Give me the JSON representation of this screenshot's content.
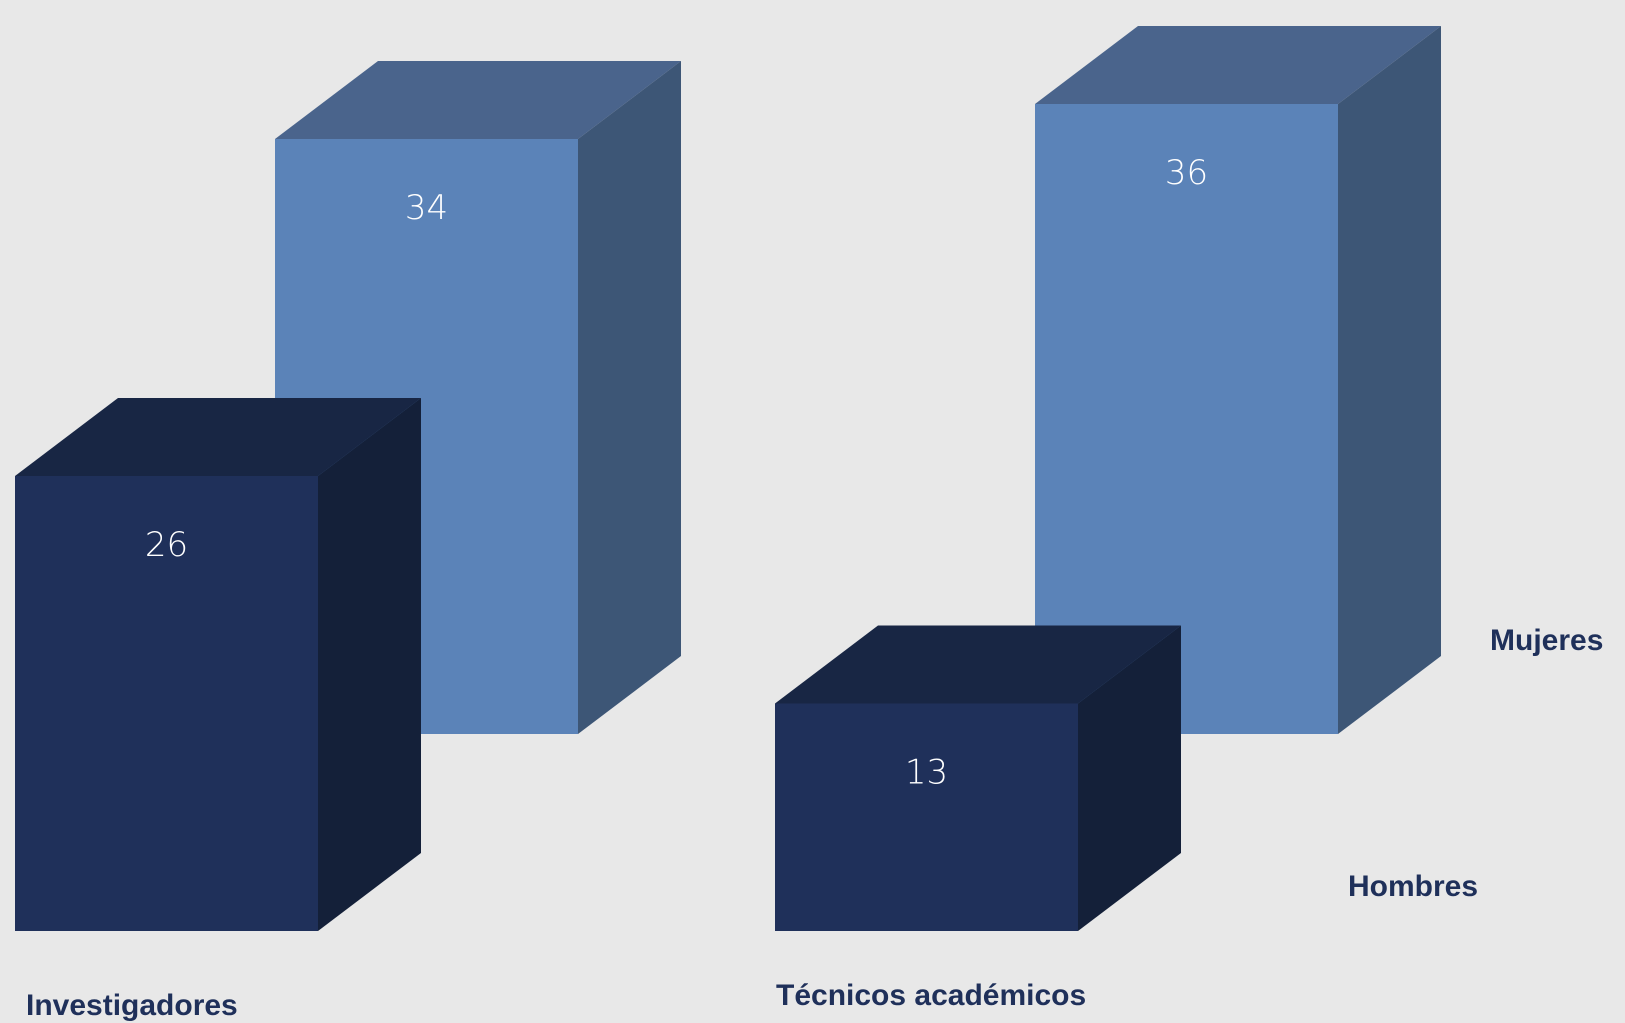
{
  "chart_data": {
    "type": "bar",
    "categories": [
      "Investigadores",
      "Técnicos académicos"
    ],
    "series": [
      {
        "name": "Hombres",
        "values": [
          26,
          13
        ]
      },
      {
        "name": "Mujeres",
        "values": [
          34,
          36
        ]
      }
    ],
    "title": "",
    "xlabel": "",
    "ylabel": "",
    "ylim": [
      0,
      36
    ],
    "grid": false,
    "legend": "right",
    "three_d": true,
    "data_labels": true
  },
  "colors": {
    "background": "#e8e8e8",
    "hombres_front": "#1f305a",
    "hombres_side": "#142039",
    "hombres_top": "#182644",
    "mujeres_front": "#5b83b8",
    "mujeres_side": "#3d5676",
    "mujeres_top": "#4a648c",
    "label_text": "#1f305a"
  }
}
